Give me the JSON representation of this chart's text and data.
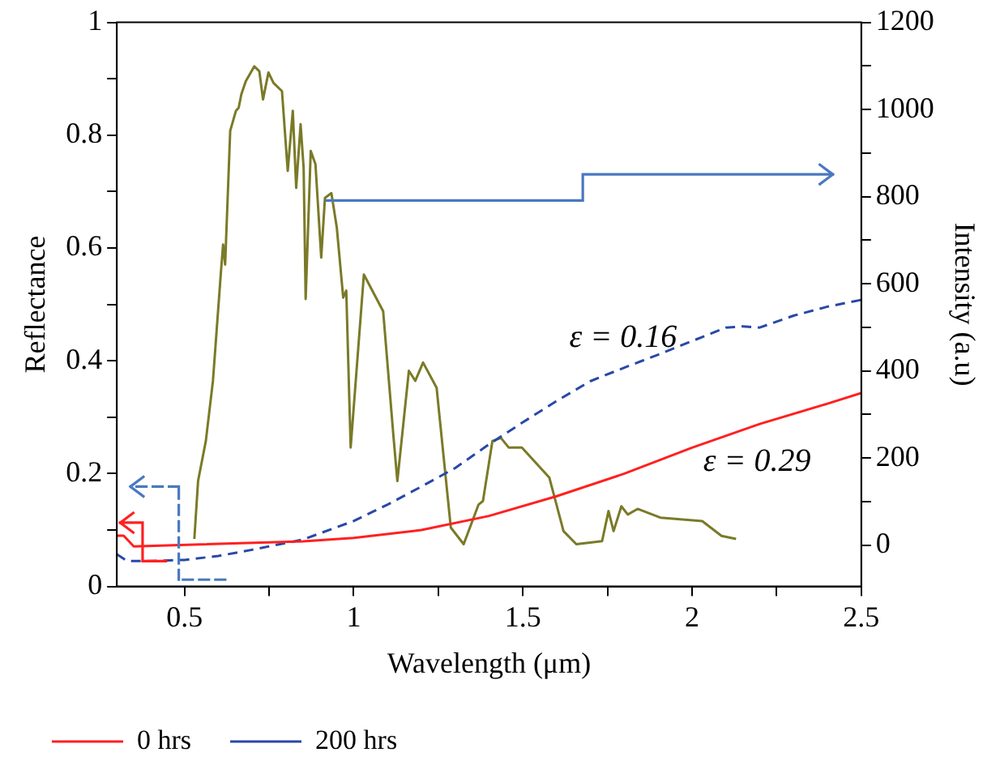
{
  "chart_data": {
    "type": "line",
    "xlabel": "Wavelength (μm)",
    "ylabel": "Reflectance",
    "y2label": "Intensity (a.u)",
    "xlim": [
      0.3,
      2.5
    ],
    "xticks": [
      {
        "value": 0.5,
        "label": "0.5"
      },
      {
        "value": 0.75,
        "label": null
      },
      {
        "value": 1,
        "label": "1"
      },
      {
        "value": 1.25,
        "label": null
      },
      {
        "value": 1.5,
        "label": "1.5"
      },
      {
        "value": 1.75,
        "label": null
      },
      {
        "value": 2,
        "label": "2"
      },
      {
        "value": 2.25,
        "label": null
      },
      {
        "value": 2.5,
        "label": "2.5"
      }
    ],
    "ylim": [
      0,
      1
    ],
    "yticks": [
      0,
      {
        "value": 0.1,
        "label": null
      },
      0.2,
      {
        "value": 0.3,
        "label": null
      },
      0.4,
      {
        "value": 0.5,
        "label": null
      },
      0.6,
      {
        "value": 0.7,
        "label": null
      },
      0.8,
      {
        "value": 0.9,
        "label": null
      },
      1
    ],
    "y2lim": [
      -95,
      1200
    ],
    "y2ticks": [
      0,
      {
        "value": 100,
        "label": null
      },
      200,
      {
        "value": 300,
        "label": null
      },
      400,
      {
        "value": 500,
        "label": null
      },
      600,
      {
        "value": 700,
        "label": null
      },
      800,
      {
        "value": 900,
        "label": null
      },
      1000,
      {
        "value": 1100,
        "label": null
      },
      1200
    ],
    "grid": false,
    "legend": "bottom left",
    "marker": "none",
    "annotations": [
      "ε = 0.16",
      "ε = 0.29"
    ],
    "series": [
      {
        "name": "0 hrs",
        "color": "#ff2020",
        "line_style": "solid",
        "x": [
          0.3,
          0.32,
          0.35,
          0.85,
          1.0,
          1.2,
          1.4,
          1.6,
          1.8,
          2.0,
          2.2,
          2.4,
          2.5
        ],
        "values": [
          0.09,
          0.09,
          0.071,
          0.08,
          0.086,
          0.1,
          0.125,
          0.16,
          0.2,
          0.246,
          0.288,
          0.324,
          0.343
        ]
      },
      {
        "name": "200 hrs",
        "color": "#2848a8",
        "line_style": "dashed",
        "x": [
          0.3,
          0.33,
          0.4,
          0.5,
          0.6,
          0.7,
          0.85,
          1.0,
          1.1,
          1.2,
          1.3,
          1.4,
          1.5,
          1.6,
          1.7,
          1.8,
          1.9,
          2.0,
          2.1,
          2.15,
          2.2,
          2.3,
          2.4,
          2.5
        ],
        "values": [
          0.057,
          0.045,
          0.045,
          0.047,
          0.054,
          0.065,
          0.083,
          0.116,
          0.145,
          0.177,
          0.21,
          0.252,
          0.291,
          0.329,
          0.364,
          0.388,
          0.411,
          0.435,
          0.459,
          0.461,
          0.459,
          0.48,
          0.496,
          0.508
        ]
      },
      {
        "color": "#7a7a28",
        "line_style": "solid",
        "axis": "y2",
        "x": [
          0.529,
          0.54,
          0.563,
          0.584,
          0.607,
          0.614,
          0.62,
          0.635,
          0.652,
          0.66,
          0.668,
          0.681,
          0.706,
          0.721,
          0.732,
          0.748,
          0.763,
          0.788,
          0.805,
          0.82,
          0.83,
          0.843,
          0.852,
          0.858,
          0.873,
          0.887,
          0.904,
          0.915,
          0.934,
          0.95,
          0.969,
          0.978,
          0.991,
          1.03,
          1.087,
          1.117,
          1.129,
          1.163,
          1.182,
          1.205,
          1.245,
          1.287,
          1.325,
          1.369,
          1.382,
          1.41,
          1.435,
          1.458,
          1.497,
          1.578,
          1.62,
          1.658,
          1.734,
          1.753,
          1.768,
          1.791,
          1.81,
          1.839,
          1.906,
          2.03,
          2.087,
          2.13
        ],
        "values": [
          14,
          147,
          239,
          377,
          621,
          690,
          644,
          951,
          997,
          1004,
          1035,
          1065,
          1099,
          1088,
          1023,
          1085,
          1061,
          1042,
          859,
          997,
          820,
          966,
          866,
          565,
          905,
          874,
          660,
          797,
          808,
          729,
          568,
          584,
          224,
          621,
          537,
          254,
          147,
          400,
          377,
          419,
          361,
          40,
          2,
          93,
          101,
          239,
          246,
          224,
          224,
          155,
          32,
          2,
          9,
          78,
          32,
          89,
          70,
          83,
          63,
          55,
          21,
          14
        ]
      }
    ]
  }
}
